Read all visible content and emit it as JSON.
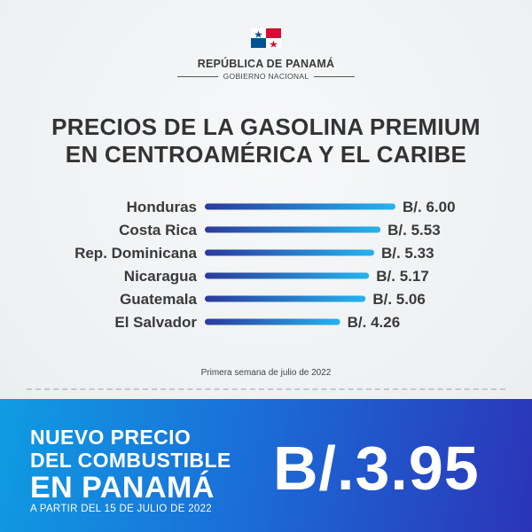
{
  "header": {
    "country": "REPÚBLICA DE PANAMÁ",
    "government": "GOBIERNO NACIONAL",
    "flag_colors": {
      "red": "#d21034",
      "blue": "#005293",
      "white": "#ffffff"
    }
  },
  "title_lines": [
    "PRECIOS DE LA GASOLINA PREMIUM",
    "EN CENTROAMÉRICA Y EL CARIBE"
  ],
  "chart_data": {
    "type": "bar",
    "orientation": "horizontal",
    "categories": [
      "Honduras",
      "Costa Rica",
      "Rep. Dominicana",
      "Nicaragua",
      "Guatemala",
      "El Salvador"
    ],
    "values": [
      6.0,
      5.53,
      5.33,
      5.17,
      5.06,
      4.26
    ],
    "value_labels": [
      "B/. 6.00",
      "B/. 5.53",
      "B/. 5.33",
      "B/. 5.17",
      "B/. 5.06",
      "B/. 4.26"
    ],
    "grid": false,
    "colors": {
      "bar_start": "#2b3a9c",
      "bar_end": "#26b3ee"
    }
  },
  "note": "Primera semana de julio de 2022",
  "banner": {
    "line1": "NUEVO PRECIO",
    "line2": "DEL COMBUSTIBLE",
    "line3": "EN PANAMÁ",
    "from": "A PARTIR DEL 15 DE JULIO DE 2022",
    "price": "B/.3.95"
  }
}
